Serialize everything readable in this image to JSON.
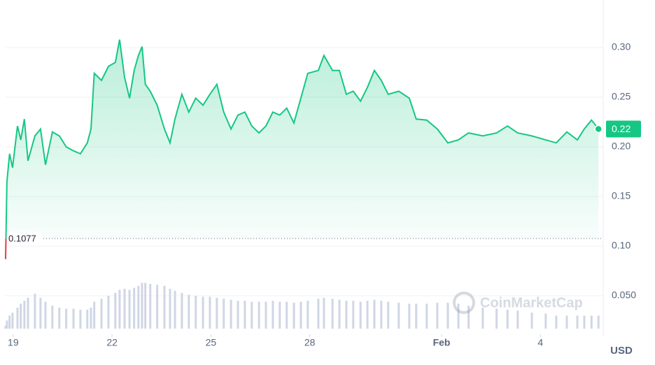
{
  "chart_data": {
    "type": "line",
    "currency": "USD",
    "watermark": "CoinMarketCap",
    "color": "#16c784",
    "below_color": "#ea3943",
    "reference": {
      "value": 0.1077,
      "label": "0.1077"
    },
    "current_label": "0.22",
    "xlim": [
      18.77,
      36.82
    ],
    "xticks": [
      19,
      22,
      25,
      28,
      {
        "value": 32,
        "label": "Feb"
      },
      {
        "value": 35,
        "label": "4"
      }
    ],
    "ylim": [
      0.0169,
      0.3479
    ],
    "yticks": [
      {
        "value": 0.3,
        "label": "0.30"
      },
      0.25,
      {
        "value": 0.2,
        "label": "0.20"
      },
      0.15,
      {
        "value": 0.1,
        "label": "0.10"
      },
      {
        "value": 0.05,
        "label": "0.050"
      }
    ],
    "grid": true,
    "x": [
      18.77,
      18.81,
      18.89,
      18.98,
      19.13,
      19.23,
      19.34,
      19.45,
      19.66,
      19.83,
      19.98,
      20.19,
      20.4,
      20.61,
      20.83,
      21.04,
      21.25,
      21.36,
      21.46,
      21.68,
      21.89,
      22.1,
      22.23,
      22.38,
      22.53,
      22.67,
      22.8,
      22.91,
      23.01,
      23.16,
      23.37,
      23.59,
      23.76,
      23.91,
      24.12,
      24.33,
      24.54,
      24.76,
      24.97,
      25.18,
      25.39,
      25.61,
      25.82,
      26.03,
      26.24,
      26.46,
      26.67,
      26.88,
      27.09,
      27.3,
      27.52,
      27.73,
      27.94,
      28.26,
      28.43,
      28.69,
      28.9,
      29.11,
      29.32,
      29.54,
      29.75,
      29.96,
      30.17,
      30.38,
      30.7,
      31.02,
      31.23,
      31.55,
      31.87,
      32.19,
      32.51,
      32.82,
      33.25,
      33.67,
      34.0,
      34.31,
      34.74,
      35.16,
      35.48,
      35.8,
      36.12,
      36.33,
      36.55,
      36.76
    ],
    "series": [
      {
        "name": "Price",
        "values": [
          0.087,
          0.165,
          0.193,
          0.179,
          0.221,
          0.207,
          0.228,
          0.186,
          0.211,
          0.218,
          0.182,
          0.215,
          0.211,
          0.2,
          0.196,
          0.193,
          0.204,
          0.218,
          0.274,
          0.267,
          0.281,
          0.285,
          0.308,
          0.27,
          0.249,
          0.277,
          0.292,
          0.301,
          0.263,
          0.256,
          0.242,
          0.218,
          0.204,
          0.228,
          0.253,
          0.235,
          0.249,
          0.242,
          0.253,
          0.263,
          0.235,
          0.218,
          0.232,
          0.235,
          0.221,
          0.214,
          0.221,
          0.235,
          0.232,
          0.239,
          0.224,
          0.249,
          0.274,
          0.277,
          0.292,
          0.277,
          0.277,
          0.253,
          0.256,
          0.246,
          0.26,
          0.277,
          0.267,
          0.253,
          0.256,
          0.249,
          0.228,
          0.227,
          0.218,
          0.204,
          0.207,
          0.214,
          0.211,
          0.214,
          0.221,
          0.214,
          0.211,
          0.207,
          0.204,
          0.215,
          0.207,
          0.218,
          0.227,
          0.218
        ]
      },
      {
        "name": "Volume",
        "color": "#cfd6e4",
        "values": [
          0.02,
          0.025,
          0.03,
          0.033,
          0.038,
          0.042,
          0.045,
          0.048,
          0.052,
          0.048,
          0.044,
          0.04,
          0.038,
          0.037,
          0.037,
          0.036,
          0.036,
          0.038,
          0.044,
          0.047,
          0.05,
          0.053,
          0.056,
          0.057,
          0.056,
          0.058,
          0.06,
          0.063,
          0.063,
          0.062,
          0.061,
          0.06,
          0.057,
          0.055,
          0.053,
          0.051,
          0.05,
          0.049,
          0.049,
          0.048,
          0.047,
          0.046,
          0.045,
          0.045,
          0.044,
          0.044,
          0.044,
          0.045,
          0.044,
          0.044,
          0.043,
          0.044,
          0.045,
          0.047,
          0.048,
          0.047,
          0.046,
          0.045,
          0.045,
          0.044,
          0.045,
          0.046,
          0.045,
          0.044,
          0.043,
          0.042,
          0.042,
          0.042,
          0.043,
          0.043,
          0.042,
          0.04,
          0.038,
          0.037,
          0.036,
          0.035,
          0.033,
          0.032,
          0.03,
          0.03,
          0.03,
          0.03,
          0.03,
          0.03
        ]
      }
    ]
  }
}
